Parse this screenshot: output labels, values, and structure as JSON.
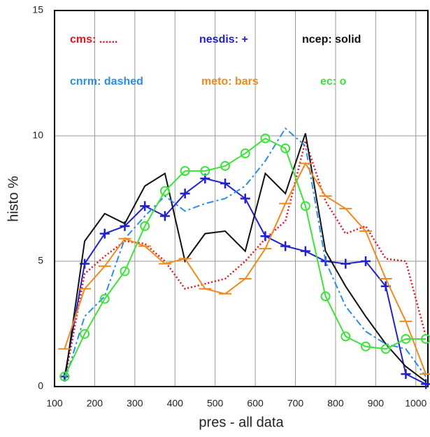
{
  "chart_data": {
    "type": "line",
    "xlabel": "pres - all data",
    "ylabel": "histo %",
    "x": [
      125,
      175,
      225,
      275,
      325,
      375,
      425,
      475,
      525,
      575,
      625,
      675,
      725,
      775,
      825,
      875,
      925,
      975,
      1025
    ],
    "xlim": [
      100,
      1030
    ],
    "xticks": [
      100,
      200,
      300,
      400,
      500,
      600,
      700,
      800,
      900,
      1000
    ],
    "ylim": [
      0,
      15
    ],
    "yticks": [
      0,
      5,
      10,
      15
    ],
    "grid": true,
    "series": [
      {
        "name": "cms: ......",
        "color": "#e8141e",
        "dash": "dotted",
        "marker": "none",
        "values": [
          0.2,
          4.5,
          5.2,
          5.8,
          5.7,
          5.0,
          3.9,
          4.1,
          4.3,
          5.0,
          5.9,
          6.6,
          9.8,
          7.4,
          6.1,
          6.4,
          5.1,
          5.0,
          2.0
        ]
      },
      {
        "name": "nesdis: +",
        "color": "#2020d0",
        "dash": "solid",
        "marker": "plus",
        "values": [
          0.4,
          4.9,
          6.1,
          6.4,
          7.2,
          6.8,
          7.7,
          8.3,
          8.1,
          7.5,
          6.0,
          5.6,
          5.4,
          5.0,
          4.9,
          5.0,
          4.0,
          0.5,
          0.1
        ]
      },
      {
        "name": "ncep: solid",
        "color": "#111111",
        "dash": "solid",
        "marker": "none",
        "values": [
          0.2,
          5.8,
          6.9,
          6.5,
          8.0,
          8.5,
          5.0,
          6.1,
          6.2,
          5.4,
          8.5,
          7.7,
          10.1,
          5.4,
          4.0,
          2.8,
          1.7,
          0.8,
          0.2
        ]
      },
      {
        "name": "cnrm: dashed",
        "color": "#2a8ee8",
        "dash": "dashed",
        "marker": "none",
        "values": [
          0.2,
          2.8,
          3.6,
          5.9,
          6.8,
          7.6,
          7.0,
          7.3,
          7.5,
          8.0,
          9.0,
          10.3,
          9.6,
          5.0,
          3.2,
          2.2,
          1.7,
          1.5,
          0.4
        ]
      },
      {
        "name": "meto: bars",
        "color": "#f08a1e",
        "dash": "solid",
        "marker": "bar",
        "values": [
          1.5,
          3.9,
          4.8,
          5.9,
          5.6,
          4.9,
          5.1,
          3.9,
          3.7,
          4.3,
          5.5,
          7.3,
          8.9,
          7.6,
          7.1,
          6.2,
          4.3,
          2.6,
          0.5
        ]
      },
      {
        "name": "ec: o",
        "color": "#3ee23a",
        "dash": "solid",
        "marker": "circle",
        "values": [
          0.4,
          2.1,
          3.5,
          4.6,
          6.4,
          7.8,
          8.6,
          8.6,
          8.8,
          9.3,
          9.9,
          9.5,
          7.2,
          3.6,
          2.0,
          1.6,
          1.5,
          1.9,
          1.9
        ]
      }
    ]
  }
}
